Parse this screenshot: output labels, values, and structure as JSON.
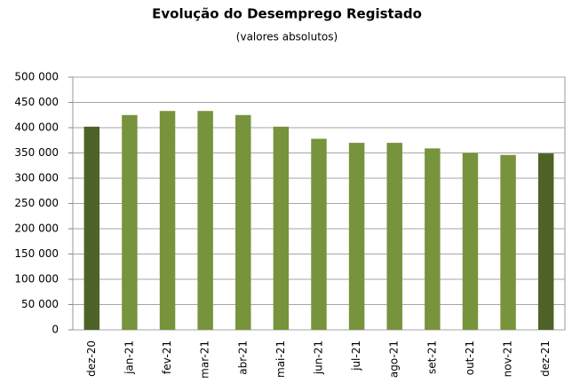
{
  "chart_data": {
    "type": "bar",
    "title": "Evolução do Desemprego Registado",
    "subtitle": "(valores absolutos)",
    "categories": [
      "dez-20",
      "jan-21",
      "fev-21",
      "mar-21",
      "abr-21",
      "mai-21",
      "jun-21",
      "jul-21",
      "ago-21",
      "set-21",
      "out-21",
      "nov-21",
      "dez-21"
    ],
    "values": [
      402000,
      425000,
      433000,
      433000,
      425000,
      402000,
      378000,
      370000,
      370000,
      359000,
      350000,
      346000,
      349000
    ],
    "colors": [
      "#4f6228",
      "#77933c",
      "#77933c",
      "#77933c",
      "#77933c",
      "#77933c",
      "#77933c",
      "#77933c",
      "#77933c",
      "#77933c",
      "#77933c",
      "#77933c",
      "#4f6228"
    ],
    "ylim": [
      0,
      500000
    ],
    "yticks": [
      0,
      {
        "value": 50000,
        "label": "50 000"
      },
      {
        "value": 100000,
        "label": "100 000"
      },
      {
        "value": 150000,
        "label": "150 000"
      },
      {
        "value": 200000,
        "label": "200 000"
      },
      {
        "value": 250000,
        "label": "250 000"
      },
      {
        "value": 300000,
        "label": "300 000"
      },
      {
        "value": 350000,
        "label": "350 000"
      },
      {
        "value": 400000,
        "label": "400 000"
      },
      {
        "value": 450000,
        "label": "450 000"
      },
      {
        "value": 500000,
        "label": "500 000"
      }
    ],
    "grid": true
  }
}
